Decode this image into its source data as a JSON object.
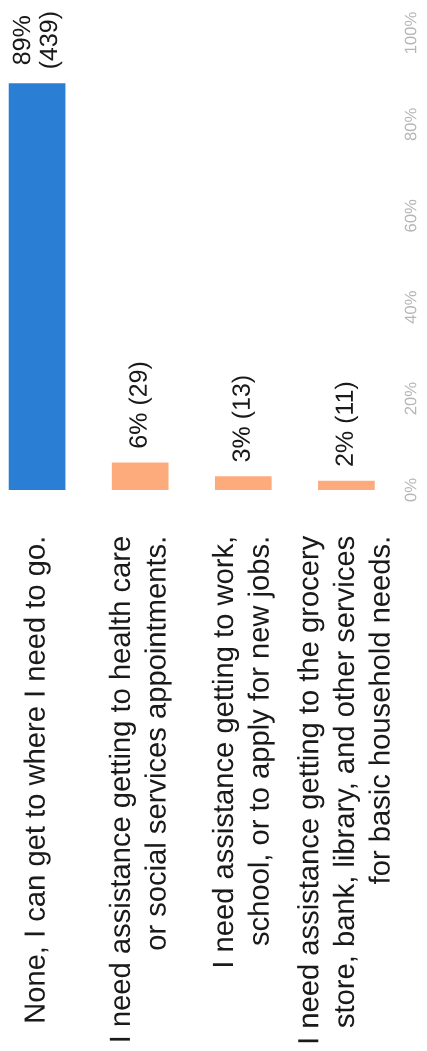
{
  "chart_data": {
    "type": "bar",
    "categories": [
      "None, I can get to where I need to go.",
      "I need assistance getting to health care\nor social services appointments.",
      "I need assistance getting to work,\nschool, or to apply for new jobs.",
      "I need assistance getting to the grocery\nstore, bank, library, and other services\nfor basic household needs."
    ],
    "values": [
      89,
      6,
      3,
      2
    ],
    "colors": [
      "#2a7fd5",
      "#fdab7d",
      "#fdab7d",
      "#fdab7d"
    ],
    "value_labels": [
      "89%\n(439)",
      "6% (29)",
      "3% (13)",
      "2% (11)"
    ],
    "ylim": [
      0,
      100
    ],
    "yticks": [
      {
        "value": 0,
        "label": "0%"
      },
      {
        "value": 20,
        "label": "20%"
      },
      {
        "value": 40,
        "label": "40%"
      },
      {
        "value": 60,
        "label": "60%"
      },
      {
        "value": 80,
        "label": "80%"
      },
      {
        "value": 100,
        "label": "100%"
      }
    ]
  }
}
